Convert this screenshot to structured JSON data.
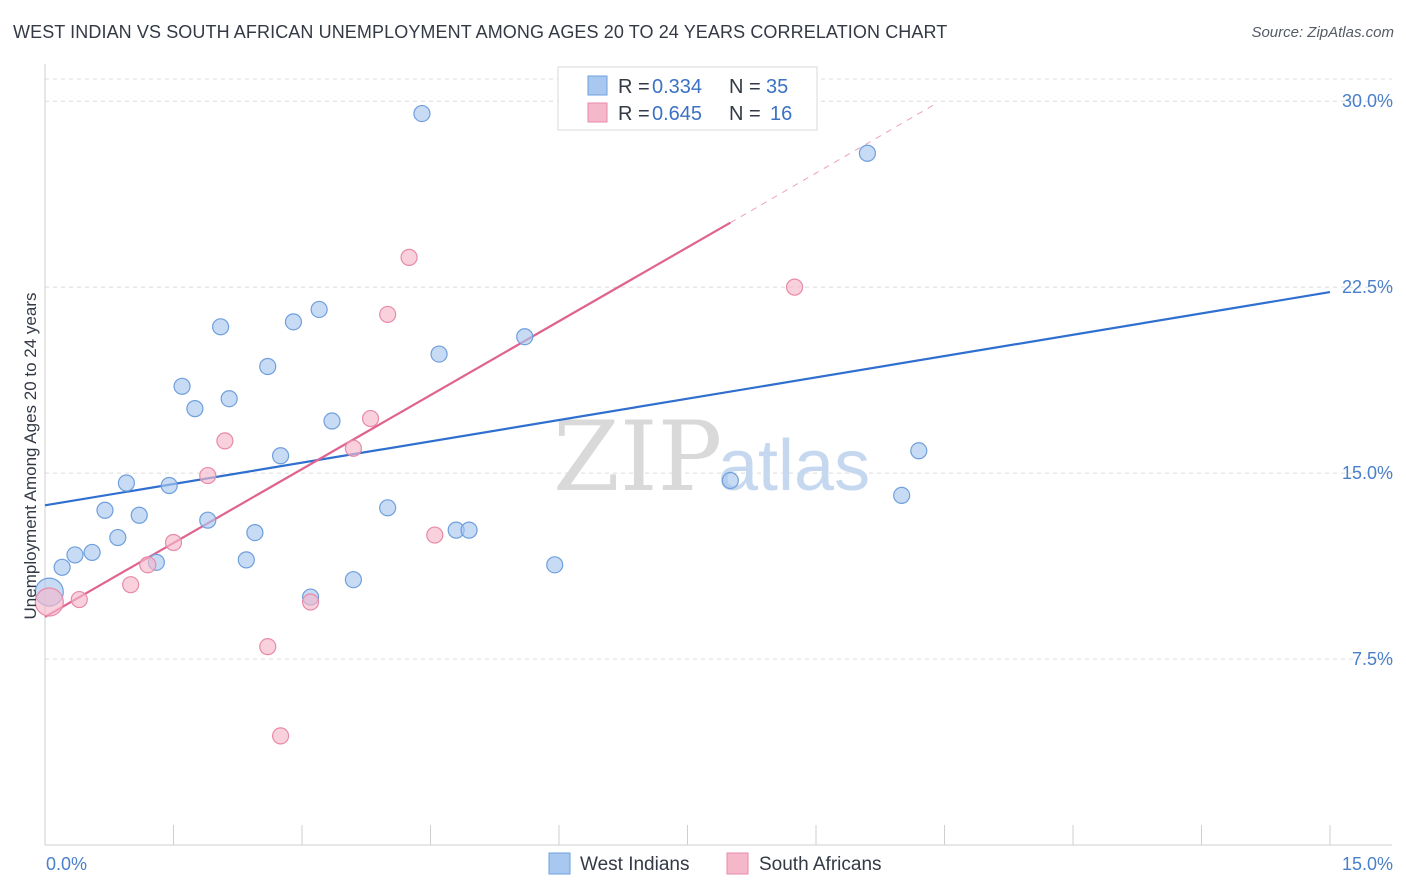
{
  "title": "WEST INDIAN VS SOUTH AFRICAN UNEMPLOYMENT AMONG AGES 20 TO 24 YEARS CORRELATION CHART",
  "source": "Source: ZipAtlas.com",
  "watermark": {
    "zip": "ZIP",
    "atlas": "atlas"
  },
  "legend": {
    "rows": [
      {
        "r_label": "R =",
        "r_value": "0.334",
        "n_label": "N =",
        "n_value": "35",
        "color": "#a9c8f0"
      },
      {
        "r_label": "R =",
        "r_value": "0.645",
        "n_label": "N =",
        "n_value": "16",
        "color": "#f5b8cb"
      }
    ]
  },
  "chart_data": {
    "type": "scatter",
    "title": "WEST INDIAN VS SOUTH AFRICAN UNEMPLOYMENT AMONG AGES 20 TO 24 YEARS CORRELATION CHART",
    "xlabel": "",
    "ylabel": "Unemployment Among Ages 20 to 24 years",
    "xlim": [
      0,
      15
    ],
    "ylim": [
      0,
      31.5
    ],
    "x_tick_labels": [
      "0.0%",
      "15.0%"
    ],
    "y_ticks": [
      7.5,
      15.0,
      22.5,
      30.0
    ],
    "y_tick_labels": [
      "7.5%",
      "15.0%",
      "22.5%",
      "30.0%"
    ],
    "grid": true,
    "legend_position": "top-center",
    "series": [
      {
        "name": "West Indians",
        "color": "#a9c8f0",
        "stroke": "#6f9fdc",
        "trend_color": "#2f6fcf",
        "trend": {
          "x": [
            0,
            15
          ],
          "y": [
            13.7,
            22.3
          ]
        },
        "points": [
          {
            "x": 0.05,
            "y": 10.2,
            "big": true
          },
          {
            "x": 0.2,
            "y": 11.2
          },
          {
            "x": 0.35,
            "y": 11.7
          },
          {
            "x": 0.55,
            "y": 11.8
          },
          {
            "x": 0.7,
            "y": 13.5
          },
          {
            "x": 0.85,
            "y": 12.4
          },
          {
            "x": 0.95,
            "y": 14.6
          },
          {
            "x": 1.1,
            "y": 13.3
          },
          {
            "x": 1.3,
            "y": 11.4
          },
          {
            "x": 1.45,
            "y": 14.5
          },
          {
            "x": 1.6,
            "y": 18.5
          },
          {
            "x": 1.75,
            "y": 17.6
          },
          {
            "x": 1.9,
            "y": 13.1
          },
          {
            "x": 2.05,
            "y": 20.9
          },
          {
            "x": 2.15,
            "y": 18.0
          },
          {
            "x": 2.35,
            "y": 11.5
          },
          {
            "x": 2.45,
            "y": 12.6
          },
          {
            "x": 2.6,
            "y": 19.3
          },
          {
            "x": 2.75,
            "y": 15.7
          },
          {
            "x": 2.9,
            "y": 21.1
          },
          {
            "x": 3.1,
            "y": 10.0
          },
          {
            "x": 3.2,
            "y": 21.6
          },
          {
            "x": 3.35,
            "y": 17.1
          },
          {
            "x": 3.6,
            "y": 10.7
          },
          {
            "x": 4.0,
            "y": 13.6
          },
          {
            "x": 4.4,
            "y": 29.5
          },
          {
            "x": 4.6,
            "y": 19.8
          },
          {
            "x": 4.8,
            "y": 12.7
          },
          {
            "x": 4.95,
            "y": 12.7
          },
          {
            "x": 5.6,
            "y": 20.5
          },
          {
            "x": 5.95,
            "y": 11.3
          },
          {
            "x": 8.0,
            "y": 14.7
          },
          {
            "x": 9.6,
            "y": 27.9
          },
          {
            "x": 10.0,
            "y": 14.1
          },
          {
            "x": 10.2,
            "y": 15.9
          }
        ]
      },
      {
        "name": "South Africans",
        "color": "#f5b8cb",
        "stroke": "#e88aa8",
        "trend_color": "#e0628f",
        "trend": {
          "x": [
            0,
            8.0
          ],
          "y": [
            9.2,
            25.1
          ]
        },
        "trend_dashed": {
          "x": [
            8.0,
            10.4
          ],
          "y": [
            25.1,
            29.9
          ]
        },
        "points": [
          {
            "x": 0.05,
            "y": 9.8,
            "big": true
          },
          {
            "x": 0.4,
            "y": 9.9
          },
          {
            "x": 1.0,
            "y": 10.5
          },
          {
            "x": 1.2,
            "y": 11.3
          },
          {
            "x": 1.5,
            "y": 12.2
          },
          {
            "x": 1.9,
            "y": 14.9
          },
          {
            "x": 2.1,
            "y": 16.3
          },
          {
            "x": 2.6,
            "y": 8.0
          },
          {
            "x": 2.75,
            "y": 4.4
          },
          {
            "x": 3.1,
            "y": 9.8
          },
          {
            "x": 3.6,
            "y": 16.0
          },
          {
            "x": 3.8,
            "y": 17.2
          },
          {
            "x": 4.0,
            "y": 21.4
          },
          {
            "x": 4.25,
            "y": 23.7
          },
          {
            "x": 4.55,
            "y": 12.5
          },
          {
            "x": 8.75,
            "y": 22.5
          }
        ]
      }
    ]
  }
}
